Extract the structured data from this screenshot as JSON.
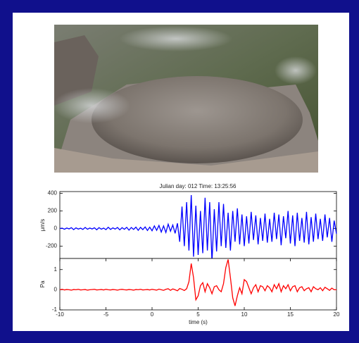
{
  "chart_data": [
    {
      "type": "line",
      "title": "Julian day: 012 Time: 13:25:56",
      "ylabel": "µm/s",
      "x": [
        -10,
        -9.75,
        -9.5,
        -9.25,
        -9,
        -8.75,
        -8.5,
        -8.25,
        -8,
        -7.75,
        -7.5,
        -7.25,
        -7,
        -6.75,
        -6.5,
        -6.25,
        -6,
        -5.75,
        -5.5,
        -5.25,
        -5,
        -4.75,
        -4.5,
        -4.25,
        -4,
        -3.75,
        -3.5,
        -3.25,
        -3,
        -2.75,
        -2.5,
        -2.25,
        -2,
        -1.75,
        -1.5,
        -1.25,
        -1,
        -0.75,
        -0.5,
        -0.25,
        0,
        0.25,
        0.5,
        0.75,
        1,
        1.25,
        1.5,
        1.75,
        2,
        2.25,
        2.5,
        2.75,
        3,
        3.25,
        3.5,
        3.75,
        4,
        4.25,
        4.5,
        4.75,
        5,
        5.25,
        5.5,
        5.75,
        6,
        6.25,
        6.5,
        6.75,
        7,
        7.25,
        7.5,
        7.75,
        8,
        8.25,
        8.5,
        8.75,
        9,
        9.25,
        9.5,
        9.75,
        10,
        10.25,
        10.5,
        10.75,
        11,
        11.25,
        11.5,
        11.75,
        12,
        12.25,
        12.5,
        12.75,
        13,
        13.25,
        13.5,
        13.75,
        14,
        14.25,
        14.5,
        14.75,
        15,
        15.25,
        15.5,
        15.75,
        16,
        16.25,
        16.5,
        16.75,
        17,
        17.25,
        17.5,
        17.75,
        18,
        18.25,
        18.5,
        18.75,
        19,
        19.25,
        19.5,
        19.75,
        20
      ],
      "series": [
        {
          "color": "#0000ff",
          "values": [
            0,
            5,
            -8,
            6,
            -4,
            10,
            -12,
            8,
            -6,
            4,
            -10,
            12,
            -8,
            6,
            -5,
            9,
            -14,
            10,
            -7,
            5,
            -12,
            15,
            -10,
            8,
            -6,
            12,
            -15,
            10,
            -8,
            14,
            -18,
            12,
            -10,
            16,
            -20,
            14,
            -12,
            18,
            -22,
            16,
            -25,
            30,
            -20,
            35,
            -40,
            30,
            -45,
            50,
            -30,
            40,
            -55,
            60,
            -150,
            250,
            -200,
            300,
            -250,
            380,
            -320,
            260,
            -300,
            200,
            -280,
            350,
            -250,
            300,
            -380,
            220,
            -260,
            300,
            -200,
            280,
            -220,
            180,
            -250,
            200,
            -150,
            230,
            -180,
            160,
            -200,
            140,
            -170,
            190,
            -130,
            150,
            -180,
            120,
            -140,
            170,
            -160,
            110,
            -150,
            180,
            -120,
            160,
            -190,
            140,
            -110,
            200,
            -170,
            150,
            -200,
            180,
            -140,
            120,
            -160,
            190,
            -180,
            130,
            -150,
            170,
            -120,
            110,
            -140,
            160,
            -100,
            120,
            -150,
            90,
            -60
          ]
        }
      ],
      "xlim": [
        -10,
        20
      ],
      "ylim": [
        -340,
        420
      ],
      "yticks": [
        -200,
        0,
        200,
        400
      ]
    },
    {
      "type": "line",
      "ylabel": "Pa",
      "xlabel": "time (s)",
      "x": [
        -10,
        -9.75,
        -9.5,
        -9.25,
        -9,
        -8.75,
        -8.5,
        -8.25,
        -8,
        -7.75,
        -7.5,
        -7.25,
        -7,
        -6.75,
        -6.5,
        -6.25,
        -6,
        -5.75,
        -5.5,
        -5.25,
        -5,
        -4.75,
        -4.5,
        -4.25,
        -4,
        -3.75,
        -3.5,
        -3.25,
        -3,
        -2.75,
        -2.5,
        -2.25,
        -2,
        -1.75,
        -1.5,
        -1.25,
        -1,
        -0.75,
        -0.5,
        -0.25,
        0,
        0.25,
        0.5,
        0.75,
        1,
        1.25,
        1.5,
        1.75,
        2,
        2.25,
        2.5,
        2.75,
        3,
        3.25,
        3.5,
        3.75,
        4,
        4.25,
        4.5,
        4.75,
        5,
        5.25,
        5.5,
        5.75,
        6,
        6.25,
        6.5,
        6.75,
        7,
        7.25,
        7.5,
        7.75,
        8,
        8.25,
        8.5,
        8.75,
        9,
        9.25,
        9.5,
        9.75,
        10,
        10.25,
        10.5,
        10.75,
        11,
        11.25,
        11.5,
        11.75,
        12,
        12.25,
        12.5,
        12.75,
        13,
        13.25,
        13.5,
        13.75,
        14,
        14.25,
        14.5,
        14.75,
        15,
        15.25,
        15.5,
        15.75,
        16,
        16.25,
        16.5,
        16.75,
        17,
        17.25,
        17.5,
        17.75,
        18,
        18.25,
        18.5,
        18.75,
        19,
        19.25,
        19.5,
        19.75,
        20
      ],
      "series": [
        {
          "color": "#ff0000",
          "values": [
            0,
            0.02,
            -0.01,
            0.01,
            0,
            -0.02,
            0.01,
            0,
            0.02,
            -0.01,
            0,
            0.01,
            -0.02,
            0,
            0.01,
            0.02,
            -0.01,
            0,
            0.01,
            -0.01,
            0.02,
            0,
            -0.01,
            0.01,
            0,
            -0.02,
            0.01,
            0.02,
            0,
            -0.01,
            0.01,
            0,
            -0.02,
            0.01,
            0,
            0.02,
            -0.01,
            0,
            0.01,
            -0.01,
            0.02,
            0,
            -0.02,
            0.03,
            0,
            -0.03,
            0.02,
            0.05,
            -0.03,
            0.04,
            0,
            -0.05,
            0.06,
            0.02,
            -0.04,
            0.05,
            0.4,
            1.3,
            0.6,
            -0.5,
            -0.3,
            0.2,
            0.35,
            -0.1,
            0.3,
            0.1,
            -0.2,
            0.15,
            0.2,
            0,
            -0.1,
            0.3,
            1.1,
            1.5,
            0.6,
            -0.4,
            -0.8,
            -0.3,
            0.1,
            -0.2,
            0.5,
            0.4,
            0.1,
            -0.2,
            0.1,
            0.25,
            -0.1,
            0.2,
            0.15,
            -0.05,
            0.2,
            0.1,
            -0.1,
            0.25,
            0.05,
            0.3,
            -0.1,
            0.2,
            0.05,
            0.25,
            -0.05,
            0.15,
            0.2,
            -0.1,
            0.1,
            0.15,
            -0.05,
            0.05,
            0.1,
            -0.1,
            0.15,
            0.05,
            0,
            0.1,
            -0.05,
            0.12,
            0.05,
            -0.03,
            0.08,
            0,
            0
          ]
        }
      ],
      "xlim": [
        -10,
        20
      ],
      "xticks": [
        -10,
        -5,
        0,
        5,
        10,
        15,
        20
      ],
      "ylim": [
        -1,
        1.55
      ],
      "yticks": [
        -1,
        0,
        1
      ]
    }
  ]
}
